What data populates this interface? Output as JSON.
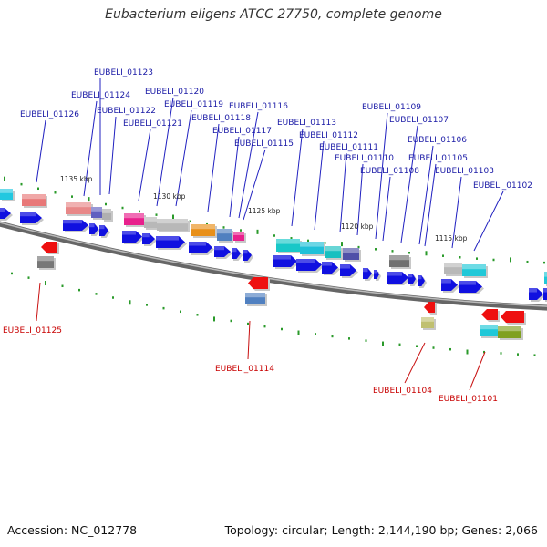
{
  "title": "Eubacterium eligens ATCC 27750, complete genome",
  "footer": {
    "accession": "Accession: NC_012778",
    "summary": "Topology: circular; Length: 2,144,190 bp; Genes: 2,066"
  },
  "colors": {
    "gene_label_upper": "#1a1aa6",
    "gene_label_lower": "#c80000",
    "forward_arrow": "#1010e0",
    "tick_mark": "#2a9a2a",
    "backbone": "#888888"
  },
  "scale_ticks": [
    {
      "label": "1135 kbp"
    },
    {
      "label": "1130 kbp"
    },
    {
      "label": "1125 kbp"
    },
    {
      "label": "1120 kbp"
    },
    {
      "label": "1115 kbp"
    }
  ],
  "upper_genes": [
    {
      "label": "EUBELI_01126"
    },
    {
      "label": "EUBELI_01124"
    },
    {
      "label": "EUBELI_01123"
    },
    {
      "label": "EUBELI_01122"
    },
    {
      "label": "EUBELI_01121"
    },
    {
      "label": "EUBELI_01120"
    },
    {
      "label": "EUBELI_01119"
    },
    {
      "label": "EUBELI_01118"
    },
    {
      "label": "EUBELI_01117"
    },
    {
      "label": "EUBELI_01116"
    },
    {
      "label": "EUBELI_01115"
    },
    {
      "label": "EUBELI_01113"
    },
    {
      "label": "EUBELI_01112"
    },
    {
      "label": "EUBELI_01111"
    },
    {
      "label": "EUBELI_01110"
    },
    {
      "label": "EUBELI_01109"
    },
    {
      "label": "EUBELI_01108"
    },
    {
      "label": "EUBELI_01107"
    },
    {
      "label": "EUBELI_01106"
    },
    {
      "label": "EUBELI_01105"
    },
    {
      "label": "EUBELI_01103"
    },
    {
      "label": "EUBELI_01102"
    }
  ],
  "lower_genes": [
    {
      "label": "EUBELI_01125"
    },
    {
      "label": "EUBELI_01114"
    },
    {
      "label": "EUBELI_01104"
    },
    {
      "label": "EUBELI_01101"
    }
  ]
}
